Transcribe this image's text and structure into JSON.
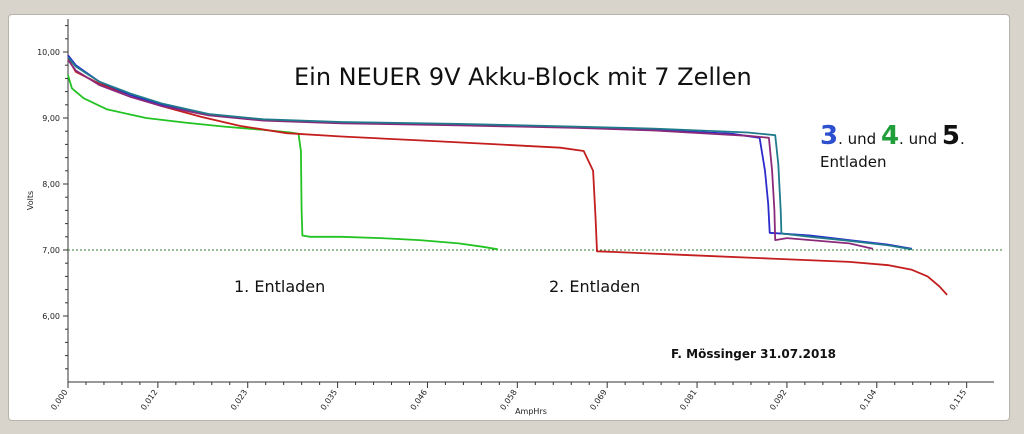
{
  "chart_data": {
    "type": "line",
    "title": "Ein NEUER 9V Akku-Block mit 7 Zellen",
    "xlabel": "AmpHrs",
    "ylabel": "Volts",
    "xlim": [
      0,
      0.1185
    ],
    "ylim": [
      5.0,
      10.5
    ],
    "x_ticks": [
      "0,000",
      "0,012",
      "0,023",
      "0,035",
      "0,046",
      "0,058",
      "0,069",
      "0,081",
      "0,092",
      "0,104",
      "0,115"
    ],
    "y_ticks": [
      "6,00",
      "7,00",
      "8,00",
      "9,00",
      "10,00"
    ],
    "reference_line": 7.0,
    "grid": false,
    "series": [
      {
        "color": "#22c322",
        "points": [
          [
            0,
            9.65
          ],
          [
            0.0005,
            9.45
          ],
          [
            0.002,
            9.3
          ],
          [
            0.005,
            9.13
          ],
          [
            0.01,
            9.0
          ],
          [
            0.015,
            8.93
          ],
          [
            0.02,
            8.87
          ],
          [
            0.025,
            8.82
          ],
          [
            0.0285,
            8.78
          ],
          [
            0.0295,
            8.76
          ],
          [
            0.0298,
            8.5
          ],
          [
            0.0299,
            7.6
          ],
          [
            0.03,
            7.22
          ],
          [
            0.031,
            7.2
          ],
          [
            0.035,
            7.2
          ],
          [
            0.04,
            7.18
          ],
          [
            0.045,
            7.15
          ],
          [
            0.05,
            7.1
          ],
          [
            0.053,
            7.05
          ],
          [
            0.055,
            7.01
          ]
        ]
      },
      {
        "color": "#c41e1e",
        "points": [
          [
            0,
            9.9
          ],
          [
            0.001,
            9.7
          ],
          [
            0.004,
            9.52
          ],
          [
            0.008,
            9.35
          ],
          [
            0.012,
            9.18
          ],
          [
            0.017,
            9.02
          ],
          [
            0.022,
            8.88
          ],
          [
            0.028,
            8.77
          ],
          [
            0.035,
            8.72
          ],
          [
            0.045,
            8.66
          ],
          [
            0.055,
            8.6
          ],
          [
            0.063,
            8.55
          ],
          [
            0.066,
            8.5
          ],
          [
            0.0672,
            8.2
          ],
          [
            0.0675,
            7.5
          ],
          [
            0.0677,
            6.98
          ],
          [
            0.07,
            6.97
          ],
          [
            0.08,
            6.92
          ],
          [
            0.09,
            6.87
          ],
          [
            0.1,
            6.82
          ],
          [
            0.105,
            6.77
          ],
          [
            0.108,
            6.7
          ],
          [
            0.11,
            6.6
          ],
          [
            0.1115,
            6.45
          ],
          [
            0.1125,
            6.32
          ]
        ]
      },
      {
        "color": "#2b2bcc",
        "points": [
          [
            0,
            9.95
          ],
          [
            0.001,
            9.8
          ],
          [
            0.004,
            9.55
          ],
          [
            0.008,
            9.35
          ],
          [
            0.012,
            9.2
          ],
          [
            0.018,
            9.05
          ],
          [
            0.025,
            8.97
          ],
          [
            0.035,
            8.93
          ],
          [
            0.05,
            8.9
          ],
          [
            0.065,
            8.86
          ],
          [
            0.075,
            8.82
          ],
          [
            0.085,
            8.76
          ],
          [
            0.0885,
            8.7
          ],
          [
            0.0892,
            8.2
          ],
          [
            0.0896,
            7.7
          ],
          [
            0.0898,
            7.26
          ],
          [
            0.095,
            7.22
          ],
          [
            0.1,
            7.15
          ],
          [
            0.105,
            7.08
          ],
          [
            0.108,
            7.02
          ]
        ]
      },
      {
        "color": "#8b2a7a",
        "points": [
          [
            0,
            9.88
          ],
          [
            0.001,
            9.72
          ],
          [
            0.004,
            9.5
          ],
          [
            0.008,
            9.32
          ],
          [
            0.012,
            9.18
          ],
          [
            0.018,
            9.04
          ],
          [
            0.025,
            8.96
          ],
          [
            0.035,
            8.92
          ],
          [
            0.05,
            8.89
          ],
          [
            0.065,
            8.85
          ],
          [
            0.075,
            8.81
          ],
          [
            0.087,
            8.73
          ],
          [
            0.0897,
            8.7
          ],
          [
            0.0901,
            8.2
          ],
          [
            0.0904,
            7.6
          ],
          [
            0.0905,
            7.15
          ],
          [
            0.092,
            7.18
          ],
          [
            0.1,
            7.1
          ],
          [
            0.103,
            7.02
          ]
        ]
      },
      {
        "color": "#1f7a8c",
        "points": [
          [
            0,
            9.92
          ],
          [
            0.001,
            9.78
          ],
          [
            0.004,
            9.55
          ],
          [
            0.008,
            9.37
          ],
          [
            0.012,
            9.22
          ],
          [
            0.018,
            9.06
          ],
          [
            0.025,
            8.98
          ],
          [
            0.035,
            8.94
          ],
          [
            0.05,
            8.91
          ],
          [
            0.065,
            8.87
          ],
          [
            0.075,
            8.84
          ],
          [
            0.087,
            8.78
          ],
          [
            0.0905,
            8.74
          ],
          [
            0.0909,
            8.3
          ],
          [
            0.0912,
            7.6
          ],
          [
            0.0913,
            7.25
          ],
          [
            0.095,
            7.2
          ],
          [
            0.1,
            7.14
          ],
          [
            0.105,
            7.07
          ],
          [
            0.108,
            7.01
          ]
        ]
      }
    ]
  },
  "annotations": {
    "legend_n1": "3",
    "legend_n2": "4",
    "legend_n3": "5",
    "legend_und": ". und ",
    "legend_dot": ".",
    "legend_entladen": "Entladen",
    "label1": "1. Entladen",
    "label2": "2. Entladen",
    "author": "F. Mössinger 31.07.2018"
  },
  "colors": {
    "n1": "#2b4fcf",
    "n2": "#1f9e3a",
    "n3": "#111111"
  }
}
